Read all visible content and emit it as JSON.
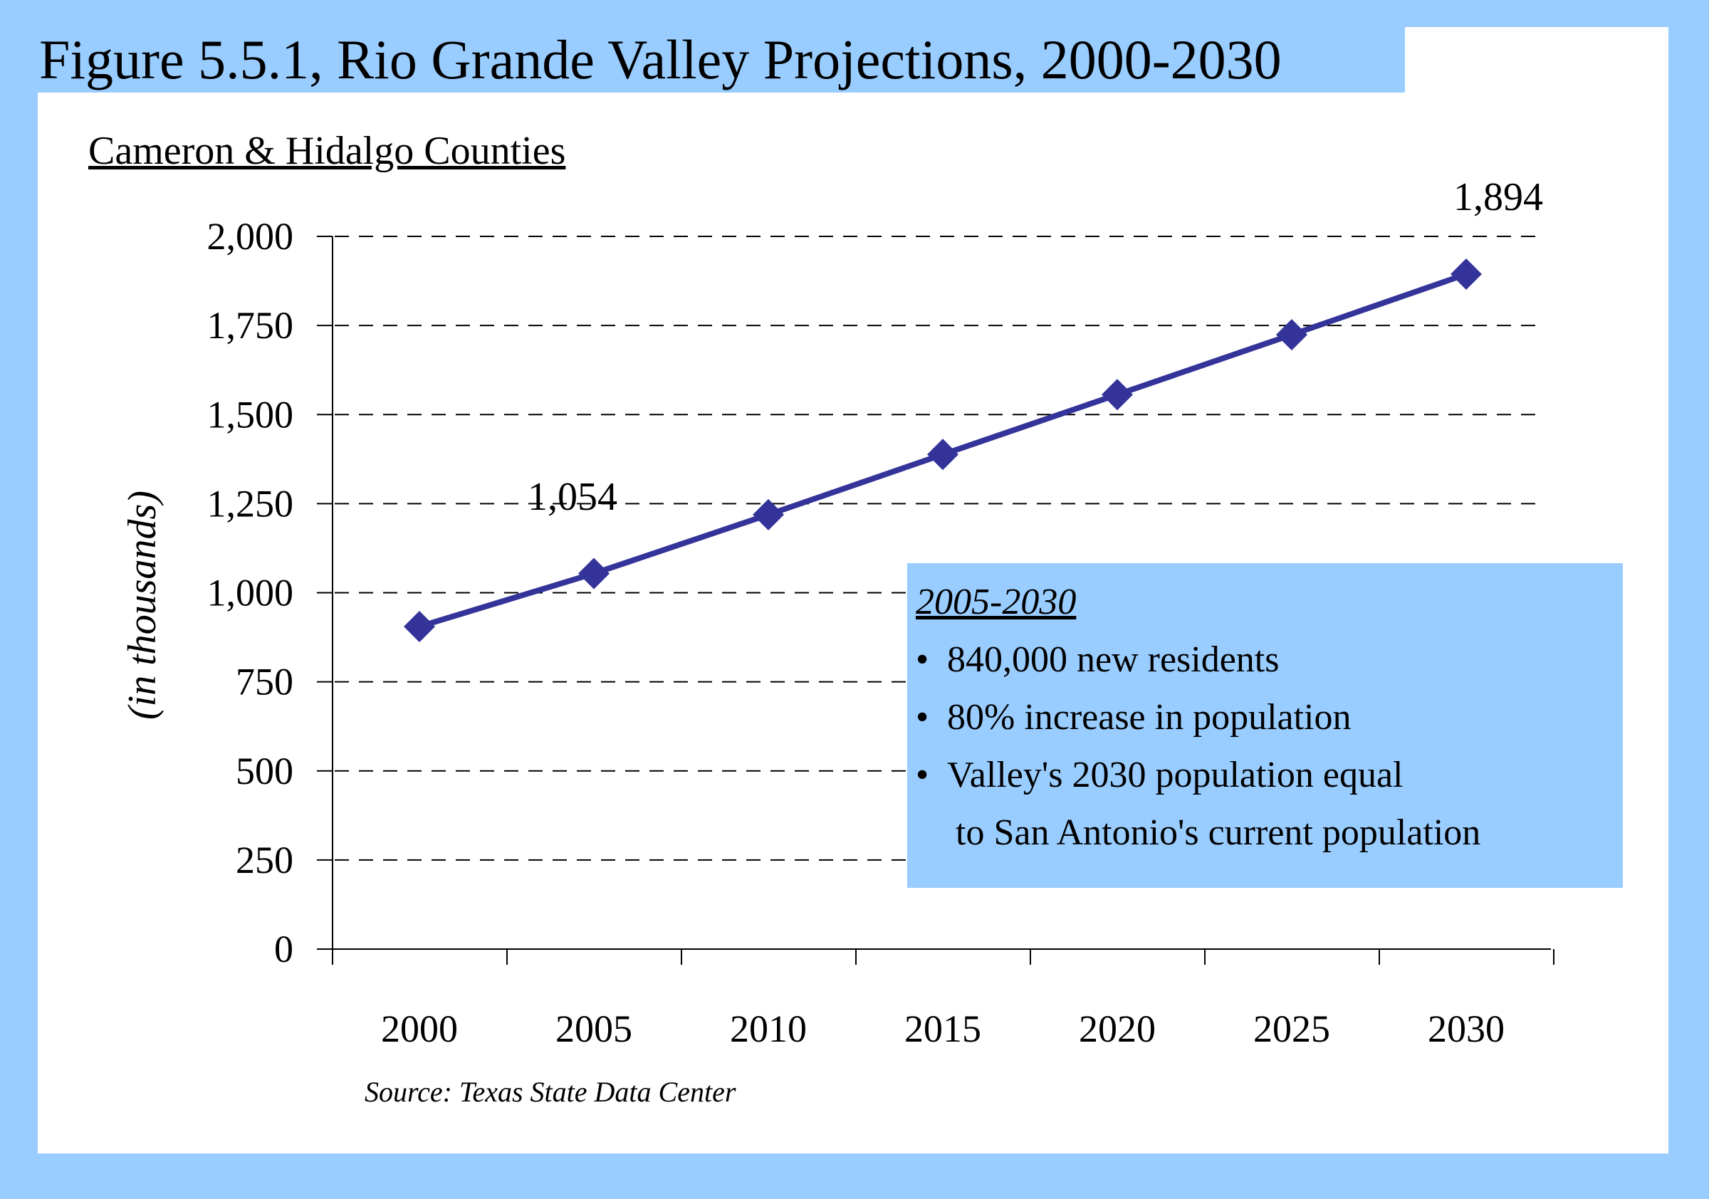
{
  "figure_title": "Figure 5.5.1, Rio Grande Valley Projections, 2000-2030",
  "subtitle": "Cameron & Hidalgo Counties",
  "source_note": "Source: Texas State Data Center",
  "colors": {
    "background": "#99CCFF",
    "panel": "#FFFFFF",
    "series": "#333399",
    "callout_fill": "#99CCFF"
  },
  "callout": {
    "heading": "2005-2030",
    "bullets": [
      "840,000 new residents",
      "80% increase in population",
      "Valley's 2030 population equal"
    ],
    "continuation": "to San Antonio's current population"
  },
  "chart_data": {
    "type": "line",
    "title": "Figure 5.5.1, Rio Grande Valley Projections, 2000-2030",
    "subtitle": "Cameron & Hidalgo Counties",
    "xlabel": "",
    "ylabel": "(in thousands)",
    "categories": [
      "2000",
      "2005",
      "2010",
      "2015",
      "2020",
      "2025",
      "2030"
    ],
    "series": [
      {
        "values": [
          905,
          1054,
          1219,
          1388,
          1556,
          1724,
          1894
        ]
      }
    ],
    "ylim": [
      0,
      2000
    ],
    "yticks": [
      0,
      250,
      500,
      750,
      1000,
      1250,
      1500,
      1750,
      2000
    ],
    "ytick_labels": [
      "0",
      "250",
      "500",
      "750",
      "1,000",
      "1,250",
      "1,500",
      "1,750",
      "2,000"
    ],
    "data_labels": [
      {
        "index": 1,
        "text": "1,054"
      },
      {
        "index": 6,
        "text": "1,894"
      }
    ],
    "grid": "horizontal dashed",
    "legend": "none"
  }
}
